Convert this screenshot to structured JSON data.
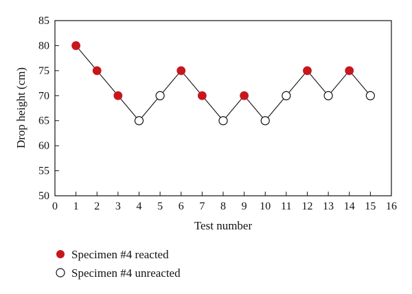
{
  "chart_data": {
    "type": "scatter",
    "xlabel": "Test number",
    "ylabel": "Drop height (cm)",
    "xlim": [
      0,
      16
    ],
    "ylim": [
      50,
      85
    ],
    "x_ticks": [
      0,
      1,
      2,
      3,
      4,
      5,
      6,
      7,
      8,
      9,
      10,
      11,
      12,
      13,
      14,
      15,
      16
    ],
    "y_ticks": [
      50,
      55,
      60,
      65,
      70,
      75,
      80,
      85
    ],
    "grid": false,
    "legend_position": "bottom-left",
    "connecting_line": true,
    "series": [
      {
        "name": "Specimen #4 reacted",
        "marker": "filled-circle",
        "color": "#c8161d",
        "points": [
          {
            "x": 1,
            "y": 80
          },
          {
            "x": 2,
            "y": 75
          },
          {
            "x": 3,
            "y": 70
          },
          {
            "x": 6,
            "y": 75
          },
          {
            "x": 7,
            "y": 70
          },
          {
            "x": 9,
            "y": 70
          },
          {
            "x": 12,
            "y": 75
          },
          {
            "x": 14,
            "y": 75
          }
        ]
      },
      {
        "name": "Specimen #4 unreacted",
        "marker": "open-circle",
        "color": "#111111",
        "points": [
          {
            "x": 4,
            "y": 65
          },
          {
            "x": 5,
            "y": 70
          },
          {
            "x": 8,
            "y": 65
          },
          {
            "x": 10,
            "y": 65
          },
          {
            "x": 11,
            "y": 70
          },
          {
            "x": 13,
            "y": 70
          },
          {
            "x": 15,
            "y": 70
          }
        ]
      }
    ]
  }
}
